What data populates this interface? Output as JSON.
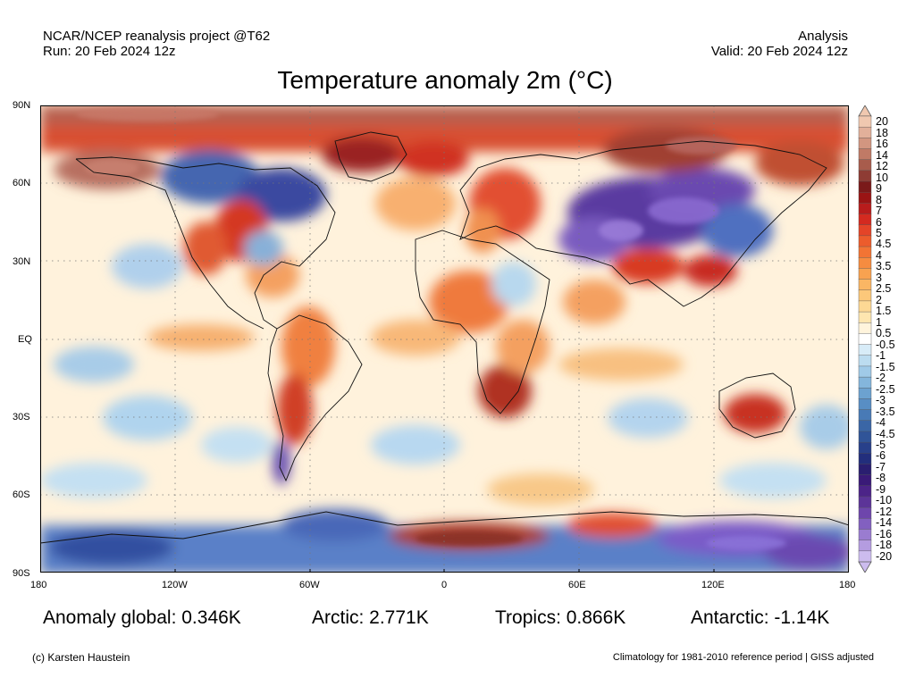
{
  "header": {
    "project": "NCAR/NCEP reanalysis project @T62",
    "run": "Run: 20 Feb 2024 12z",
    "kind": "Analysis",
    "valid": "Valid: 20 Feb 2024 12z"
  },
  "title": "Temperature anomaly 2m (°C)",
  "axes": {
    "lat_labels": [
      "90N",
      "60N",
      "30N",
      "EQ",
      "30S",
      "60S",
      "90S"
    ],
    "lon_labels": [
      "180",
      "120W",
      "60W",
      "0",
      "60E",
      "120E",
      "180"
    ]
  },
  "colorbar": {
    "labels": [
      "20",
      "18",
      "16",
      "14",
      "12",
      "10",
      "9",
      "8",
      "7",
      "6",
      "5",
      "4.5",
      "4",
      "3.5",
      "3",
      "2.5",
      "2",
      "1.5",
      "1",
      "0.5",
      "-0.5",
      "-1",
      "-1.5",
      "-2",
      "-2.5",
      "-3",
      "-3.5",
      "-4",
      "-4.5",
      "-5",
      "-6",
      "-7",
      "-8",
      "-9",
      "-10",
      "-12",
      "-14",
      "-16",
      "-18",
      "-20"
    ],
    "colors": [
      "#f0c8b0",
      "#e2b09a",
      "#d29680",
      "#c07a66",
      "#a85c4c",
      "#8e3c34",
      "#7a1a1a",
      "#9a1414",
      "#b81c1c",
      "#d42a20",
      "#e44428",
      "#ec5c2c",
      "#f27434",
      "#f68c40",
      "#f8a250",
      "#fab664",
      "#fcc87a",
      "#fdd894",
      "#fee6b0",
      "#fff4dc",
      "#ffffff",
      "#d8ecf8",
      "#bcdcf0",
      "#a0cae8",
      "#84b6dc",
      "#6ca2d0",
      "#588ec4",
      "#487ab6",
      "#3a66a6",
      "#305498",
      "#28408a",
      "#222e7c",
      "#2a1e70",
      "#3a1a78",
      "#4c2488",
      "#5c3498",
      "#6e46ac",
      "#8260c0",
      "#9a7cd0",
      "#b49ce0",
      "#ccbcee"
    ],
    "top_cap": "#f0c8b0",
    "bottom_cap": "#ccbcee"
  },
  "stats": {
    "global": "Anomaly global: 0.346K",
    "arctic": "Arctic: 2.771K",
    "tropics": "Tropics: 0.866K",
    "antarctic": "Antarctic: -1.14K"
  },
  "footer": {
    "credit": "(c) Karsten Haustein",
    "note": "Climatology for 1981-2010 reference period | GISS adjusted"
  }
}
